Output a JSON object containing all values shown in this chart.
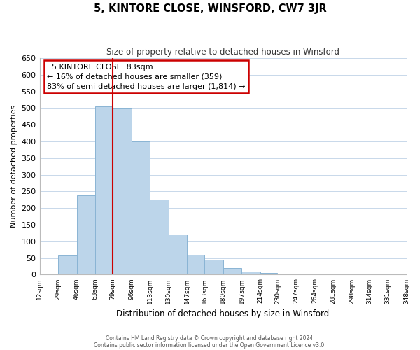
{
  "title": "5, KINTORE CLOSE, WINSFORD, CW7 3JR",
  "subtitle": "Size of property relative to detached houses in Winsford",
  "xlabel": "Distribution of detached houses by size in Winsford",
  "ylabel": "Number of detached properties",
  "bar_color": "#bcd5ea",
  "bar_edge_color": "#8ab4d4",
  "vline_color": "#cc0000",
  "vline_x": 79,
  "bin_edges": [
    12,
    29,
    46,
    63,
    79,
    96,
    113,
    130,
    147,
    163,
    180,
    197,
    214,
    230,
    247,
    264,
    281,
    298,
    314,
    331,
    348
  ],
  "bin_heights": [
    3,
    57,
    238,
    505,
    500,
    400,
    225,
    120,
    60,
    45,
    20,
    10,
    5,
    2,
    1,
    0,
    0,
    0,
    0,
    2
  ],
  "tick_labels": [
    "12sqm",
    "29sqm",
    "46sqm",
    "63sqm",
    "79sqm",
    "96sqm",
    "113sqm",
    "130sqm",
    "147sqm",
    "163sqm",
    "180sqm",
    "197sqm",
    "214sqm",
    "230sqm",
    "247sqm",
    "264sqm",
    "281sqm",
    "298sqm",
    "314sqm",
    "331sqm",
    "348sqm"
  ],
  "ylim": [
    0,
    650
  ],
  "yticks": [
    0,
    50,
    100,
    150,
    200,
    250,
    300,
    350,
    400,
    450,
    500,
    550,
    600,
    650
  ],
  "annotation_title": "5 KINTORE CLOSE: 83sqm",
  "annotation_line1": "← 16% of detached houses are smaller (359)",
  "annotation_line2": "83% of semi-detached houses are larger (1,814) →",
  "footer1": "Contains HM Land Registry data © Crown copyright and database right 2024.",
  "footer2": "Contains public sector information licensed under the Open Government Licence v3.0.",
  "background_color": "#ffffff",
  "grid_color": "#c8d8ea"
}
